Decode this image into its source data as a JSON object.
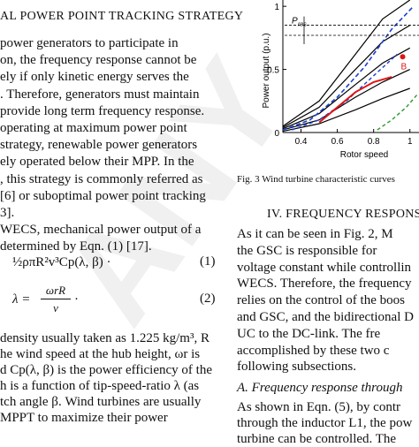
{
  "left_column": {
    "heading": "AL POWER POINT TRACKING STRATEGY",
    "lines": [
      "power generators to participate in",
      "on, the frequency response cannot be",
      "ely if only kinetic energy serves the",
      ". Therefore, generators must maintain",
      "provide long term frequency response.",
      "operating at maximum power point",
      "strategy, renewable power generators",
      "ely operated below their MPP. In the",
      ", this strategy is commonly referred as",
      "[6]  or suboptimal power point tracking",
      "3].",
      "WECS, mechanical power output of a",
      "determined by Eqn. (1) [17]."
    ],
    "eq1": "½ρπR²v³Cp(λ, β) ·",
    "eq1_num": "(1)",
    "eq2_lhs": "λ =",
    "eq2_num": "ωrR",
    "eq2_den": "v",
    "eq2_dot": "·",
    "eq2_label": "(2)",
    "lines2": [
      "density usually taken as 1.225 kg/m³, R",
      "he wind speed at the hub height, ωr is",
      "d Cp(λ, β) is the power efficiency of the",
      "h is a function of tip-speed-ratio λ (as",
      "tch angle β.  Wind turbines are usually",
      "MPPT  to  maximize  their  power"
    ]
  },
  "figure": {
    "caption": "Fig. 3 Wind turbine characteristic curves",
    "ylabel": "Power output (p.u.)",
    "xlabel": "Rotor speed",
    "label_pres": "P",
    "label_pres_sub": "res",
    "label_b": "B",
    "y_ticks": [
      "0",
      "0.5",
      "1"
    ],
    "x_ticks": [
      "0.4",
      "0.6",
      "0.8",
      "1"
    ]
  },
  "right_column": {
    "section": "IV.    FREQUENCY RESPONS",
    "lines": [
      "As it can be seen in Fig. 2, M",
      "the GSC is responsible for",
      "voltage constant while controllin",
      "WECS. Therefore, the frequency",
      "relies on the control of the boos",
      "and GSC, and the bidirectional D",
      "UC to the DC-link. The fre",
      "accomplished by these two c",
      "following subsections."
    ],
    "subsection": "A.  Frequency response through",
    "lines2": [
      "As shown in Eqn. (5), by contr",
      "through the inductor L1, the pow",
      "turbine can be controlled. The"
    ]
  },
  "watermark": "ANY",
  "chart_data": {
    "type": "line",
    "xlabel": "Rotor speed",
    "ylabel": "Power output (p.u.)",
    "xlim": [
      0.3,
      1.05
    ],
    "ylim": [
      0,
      1.05
    ],
    "x_ticks": [
      0.4,
      0.6,
      0.8,
      1.0
    ],
    "y_ticks": [
      0,
      0.5,
      1.0
    ],
    "series": [
      {
        "x": [
          0.3,
          0.5,
          0.7,
          0.85,
          1.0
        ],
        "values": [
          0.05,
          0.25,
          0.62,
          0.9,
          1.05
        ]
      },
      {
        "x": [
          0.3,
          0.5,
          0.7,
          0.85,
          1.0
        ],
        "values": [
          0.04,
          0.2,
          0.5,
          0.72,
          0.85
        ]
      },
      {
        "x": [
          0.3,
          0.5,
          0.7,
          0.85,
          1.0
        ],
        "values": [
          0.03,
          0.15,
          0.38,
          0.55,
          0.67
        ]
      },
      {
        "x": [
          0.3,
          0.5,
          0.7,
          0.85,
          1.0
        ],
        "values": [
          0.02,
          0.1,
          0.28,
          0.4,
          0.5
        ]
      },
      {
        "x": [
          0.3,
          0.5,
          0.7,
          0.85,
          1.0
        ],
        "values": [
          0.01,
          0.07,
          0.18,
          0.27,
          0.35
        ]
      }
    ],
    "mppt_curve": {
      "x": [
        0.3,
        0.45,
        0.6,
        0.75,
        0.9,
        1.02
      ],
      "values": [
        0.02,
        0.1,
        0.28,
        0.52,
        0.82,
        1.0
      ]
    },
    "deload_curve": {
      "x": [
        0.35,
        0.5,
        0.65,
        0.8,
        0.93
      ],
      "values": [
        0.02,
        0.1,
        0.25,
        0.45,
        0.62
      ]
    },
    "red_curve": {
      "x": [
        0.5,
        0.6,
        0.7,
        0.8,
        0.9
      ],
      "values": [
        0.08,
        0.2,
        0.32,
        0.4,
        0.44
      ]
    },
    "green_curve": {
      "x": [
        0.82,
        0.9,
        0.98,
        1.04
      ],
      "values": [
        0.02,
        0.1,
        0.2,
        0.3
      ]
    },
    "pres_levels": [
      0.85,
      0.77
    ]
  }
}
